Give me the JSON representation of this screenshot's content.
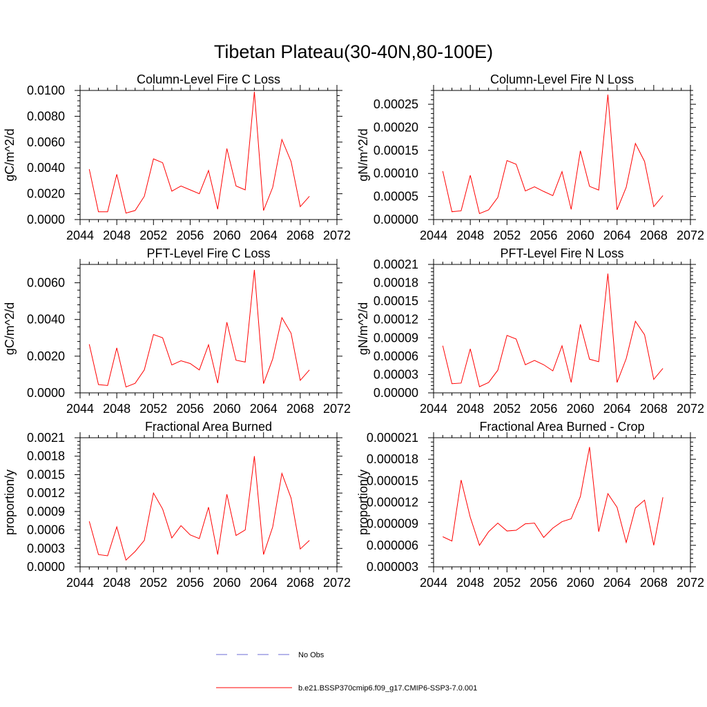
{
  "figure": {
    "title": "Tibetan Plateau(30-40N,80-100E)",
    "legend": [
      {
        "label": "No Obs",
        "color": "#6b6bd6",
        "style": "dashed"
      },
      {
        "label": "b.e21.BSSP370cmip6.f09_g17.CMIP6-SSP3-7.0.001",
        "color": "#ff0000",
        "style": "solid"
      }
    ]
  },
  "chart_data": [
    {
      "type": "line",
      "title": "Column-Level Fire C Loss",
      "ylabel": "gC/m^2/d",
      "xlim": [
        2044,
        2072
      ],
      "ylim": [
        0,
        0.01
      ],
      "xticks": [
        "2044",
        "2048",
        "2052",
        "2056",
        "2060",
        "2064",
        "2068",
        "2072"
      ],
      "yticks": [
        "0.0000",
        "0.0020",
        "0.0040",
        "0.0060",
        "0.0080",
        "0.0100"
      ],
      "series": [
        {
          "name": "b.e21.BSSP370cmip6.f09_g17.CMIP6-SSP3-7.0.001",
          "color": "#ff0000",
          "x": [
            2045,
            2046,
            2047,
            2048,
            2049,
            2050,
            2051,
            2052,
            2053,
            2054,
            2055,
            2056,
            2057,
            2058,
            2059,
            2060,
            2061,
            2062,
            2063,
            2064,
            2065,
            2066,
            2067,
            2068,
            2069
          ],
          "y": [
            0.0039,
            0.0006,
            0.0006,
            0.0035,
            0.0005,
            0.0007,
            0.0018,
            0.0047,
            0.0044,
            0.0022,
            0.0026,
            0.0023,
            0.002,
            0.0038,
            0.0008,
            0.0055,
            0.0026,
            0.0023,
            0.0099,
            0.0007,
            0.0025,
            0.0062,
            0.0045,
            0.001,
            0.0018
          ]
        }
      ]
    },
    {
      "type": "line",
      "title": "Column-Level Fire N Loss",
      "ylabel": "gN/m^2/d",
      "xlim": [
        2044,
        2072
      ],
      "ylim": [
        0,
        0.00028
      ],
      "xticks": [
        "2044",
        "2048",
        "2052",
        "2056",
        "2060",
        "2064",
        "2068",
        "2072"
      ],
      "yticks": [
        "0.00000",
        "0.00005",
        "0.00010",
        "0.00015",
        "0.00020",
        "0.00025"
      ],
      "series": [
        {
          "name": "b.e21.BSSP370cmip6.f09_g17.CMIP6-SSP3-7.0.001",
          "color": "#ff0000",
          "x": [
            2045,
            2046,
            2047,
            2048,
            2049,
            2050,
            2051,
            2052,
            2053,
            2054,
            2055,
            2056,
            2057,
            2058,
            2059,
            2060,
            2061,
            2062,
            2063,
            2064,
            2065,
            2066,
            2067,
            2068,
            2069
          ],
          "y": [
            0.000105,
            1.7e-05,
            1.9e-05,
            9.6e-05,
            1.3e-05,
            2.1e-05,
            4.8e-05,
            0.000128,
            0.00012,
            6.2e-05,
            7.1e-05,
            6.1e-05,
            5.2e-05,
            0.000104,
            2.2e-05,
            0.000149,
            7.2e-05,
            6.4e-05,
            0.000271,
            2.1e-05,
            7e-05,
            0.000165,
            0.000126,
            2.8e-05,
            5.2e-05
          ]
        }
      ]
    },
    {
      "type": "line",
      "title": "PFT-Level Fire C Loss",
      "ylabel": "gC/m^2/d",
      "xlim": [
        2044,
        2072
      ],
      "ylim": [
        0,
        0.007
      ],
      "xticks": [
        "2044",
        "2048",
        "2052",
        "2056",
        "2060",
        "2064",
        "2068",
        "2072"
      ],
      "yticks": [
        "0.0000",
        "0.0020",
        "0.0040",
        "0.0060"
      ],
      "series": [
        {
          "name": "b.e21.BSSP370cmip6.f09_g17.CMIP6-SSP3-7.0.001",
          "color": "#ff0000",
          "x": [
            2045,
            2046,
            2047,
            2048,
            2049,
            2050,
            2051,
            2052,
            2053,
            2054,
            2055,
            2056,
            2057,
            2058,
            2059,
            2060,
            2061,
            2062,
            2063,
            2064,
            2065,
            2066,
            2067,
            2068,
            2069
          ],
          "y": [
            0.00265,
            0.00045,
            0.0004,
            0.00245,
            0.00032,
            0.00052,
            0.00125,
            0.00318,
            0.003,
            0.00152,
            0.00175,
            0.0016,
            0.00125,
            0.00262,
            0.00053,
            0.00385,
            0.00178,
            0.00168,
            0.0067,
            0.0005,
            0.00185,
            0.0041,
            0.00325,
            0.00068,
            0.00125
          ]
        }
      ]
    },
    {
      "type": "line",
      "title": "PFT-Level Fire N Loss",
      "ylabel": "gN/m^2/d",
      "xlim": [
        2044,
        2072
      ],
      "ylim": [
        0,
        0.00021
      ],
      "xticks": [
        "2044",
        "2048",
        "2052",
        "2056",
        "2060",
        "2064",
        "2068",
        "2072"
      ],
      "yticks": [
        "0.00000",
        "0.00003",
        "0.00006",
        "0.00009",
        "0.00012",
        "0.00015",
        "0.00018",
        "0.00021"
      ],
      "series": [
        {
          "name": "b.e21.BSSP370cmip6.f09_g17.CMIP6-SSP3-7.0.001",
          "color": "#ff0000",
          "x": [
            2045,
            2046,
            2047,
            2048,
            2049,
            2050,
            2051,
            2052,
            2053,
            2054,
            2055,
            2056,
            2057,
            2058,
            2059,
            2060,
            2061,
            2062,
            2063,
            2064,
            2065,
            2066,
            2067,
            2068,
            2069
          ],
          "y": [
            7.7e-05,
            1.5e-05,
            1.6e-05,
            7.2e-05,
            1e-05,
            1.7e-05,
            3.7e-05,
            9.4e-05,
            8.8e-05,
            4.6e-05,
            5.3e-05,
            4.6e-05,
            3.6e-05,
            7.7e-05,
            1.7e-05,
            0.000112,
            5.5e-05,
            5.1e-05,
            0.000195,
            1.7e-05,
            5.6e-05,
            0.000117,
            9.5e-05,
            2.2e-05,
            4e-05
          ]
        }
      ]
    },
    {
      "type": "line",
      "title": "Fractional Area Burned",
      "ylabel": "proportion/y",
      "xlim": [
        2044,
        2072
      ],
      "ylim": [
        0,
        0.0021
      ],
      "xticks": [
        "2044",
        "2048",
        "2052",
        "2056",
        "2060",
        "2064",
        "2068",
        "2072"
      ],
      "yticks": [
        "0.0000",
        "0.0003",
        "0.0006",
        "0.0009",
        "0.0012",
        "0.0015",
        "0.0018",
        "0.0021"
      ],
      "series": [
        {
          "name": "b.e21.BSSP370cmip6.f09_g17.CMIP6-SSP3-7.0.001",
          "color": "#ff0000",
          "x": [
            2045,
            2046,
            2047,
            2048,
            2049,
            2050,
            2051,
            2052,
            2053,
            2054,
            2055,
            2056,
            2057,
            2058,
            2059,
            2060,
            2061,
            2062,
            2063,
            2064,
            2065,
            2066,
            2067,
            2068,
            2069
          ],
          "y": [
            0.00074,
            0.0002,
            0.00018,
            0.00065,
            0.00011,
            0.00025,
            0.00043,
            0.0012,
            0.00094,
            0.00047,
            0.00067,
            0.00052,
            0.00046,
            0.00097,
            0.0002,
            0.00118,
            0.00051,
            0.0006,
            0.0018,
            0.0002,
            0.00065,
            0.00152,
            0.00112,
            0.00029,
            0.00043
          ]
        }
      ]
    },
    {
      "type": "line",
      "title": "Fractional Area Burned - Crop",
      "ylabel": "proportion/y",
      "xlim": [
        2044,
        2072
      ],
      "ylim": [
        3e-06,
        2.1e-05
      ],
      "xticks": [
        "2044",
        "2048",
        "2052",
        "2056",
        "2060",
        "2064",
        "2068",
        "2072"
      ],
      "yticks": [
        "0.000003",
        "0.000006",
        "0.000009",
        "0.000012",
        "0.000015",
        "0.000018",
        "0.000021"
      ],
      "series": [
        {
          "name": "b.e21.BSSP370cmip6.f09_g17.CMIP6-SSP3-7.0.001",
          "color": "#ff0000",
          "x": [
            2045,
            2046,
            2047,
            2048,
            2049,
            2050,
            2051,
            2052,
            2053,
            2054,
            2055,
            2056,
            2057,
            2058,
            2059,
            2060,
            2061,
            2062,
            2063,
            2064,
            2065,
            2066,
            2067,
            2068,
            2069
          ],
          "y": [
            7.2e-06,
            6.6e-06,
            1.51e-05,
            9.9e-06,
            6e-06,
            7.9e-06,
            9.1e-06,
            8e-06,
            8.1e-06,
            9e-06,
            9.1e-06,
            7.1e-06,
            8.4e-06,
            9.3e-06,
            9.7e-06,
            1.28e-05,
            1.97e-05,
            7.9e-06,
            1.32e-05,
            1.13e-05,
            6.4e-06,
            1.12e-05,
            1.23e-05,
            6e-06,
            1.27e-05
          ]
        }
      ]
    }
  ]
}
